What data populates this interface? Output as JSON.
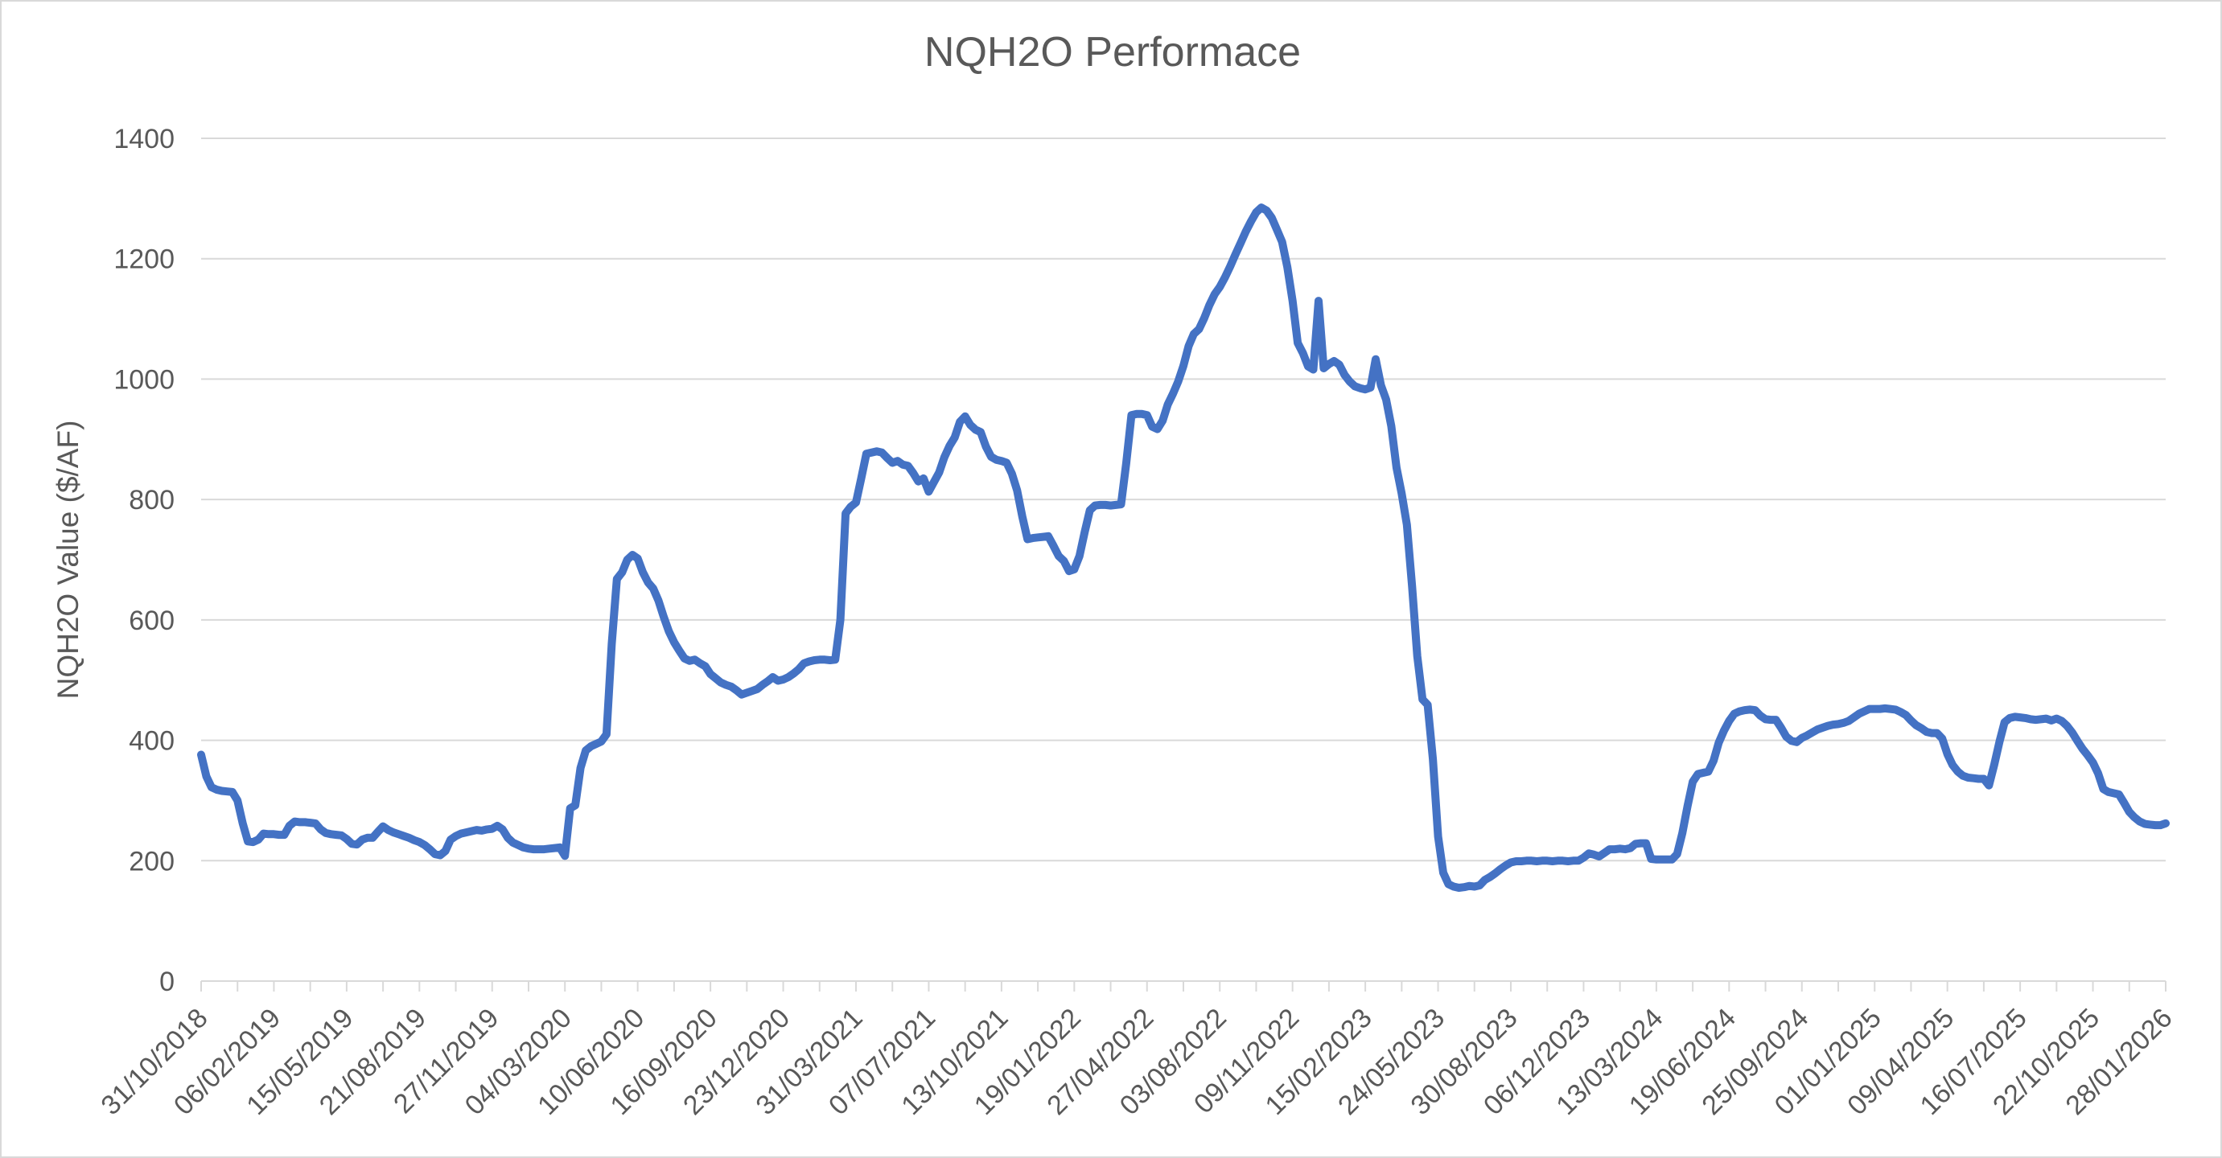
{
  "chart_data": {
    "type": "line",
    "title": "NQH2O Performace",
    "xlabel": "",
    "ylabel": "NQH2O Value ($/AF)",
    "ylim": [
      0,
      1400
    ],
    "ytick_step": 200,
    "yticks": [
      0,
      200,
      400,
      600,
      800,
      1000,
      1200,
      1400
    ],
    "grid": true,
    "legend_position": "none",
    "x_label_every": 14,
    "x_tick_every": 7,
    "x_labels": [
      "31/10/2018",
      "06/02/2019",
      "15/05/2019",
      "21/08/2019",
      "27/11/2019",
      "04/03/2020",
      "10/06/2020",
      "16/09/2020",
      "23/12/2020",
      "31/03/2021",
      "07/07/2021",
      "13/10/2021",
      "19/01/2022",
      "27/04/2022",
      "03/08/2022",
      "09/11/2022",
      "15/02/2023",
      "24/05/2023",
      "30/08/2023",
      "06/12/2023",
      "13/03/2024",
      "19/06/2024",
      "25/09/2024",
      "01/01/2025",
      "09/04/2025",
      "16/07/2025",
      "22/10/2025",
      "28/01/2026"
    ],
    "series": [
      {
        "name": "NQH2O Value",
        "color": "#4472C4",
        "values": [
          376,
          340,
          322,
          318,
          316,
          315,
          314,
          300,
          262,
          232,
          231,
          235,
          245,
          244,
          244,
          243,
          243,
          258,
          265,
          264,
          264,
          263,
          262,
          252,
          246,
          244,
          243,
          242,
          236,
          228,
          227,
          235,
          238,
          238,
          248,
          257,
          251,
          247,
          244,
          241,
          238,
          234,
          231,
          226,
          219,
          211,
          209,
          216,
          235,
          241,
          245,
          247,
          249,
          251,
          250,
          252,
          253,
          258,
          252,
          238,
          230,
          226,
          222,
          220,
          219,
          219,
          219,
          220,
          221,
          222,
          208,
          287,
          292,
          354,
          383,
          390,
          394,
          398,
          410,
          560,
          668,
          679,
          700,
          708,
          702,
          679,
          662,
          652,
          632,
          605,
          581,
          563,
          549,
          536,
          532,
          534,
          528,
          523,
          510,
          503,
          496,
          492,
          489,
          483,
          476,
          479,
          482,
          485,
          492,
          498,
          505,
          499,
          501,
          505,
          511,
          518,
          528,
          531,
          533,
          534,
          534,
          533,
          534,
          600,
          777,
          788,
          795,
          835,
          876,
          878,
          880,
          878,
          869,
          861,
          864,
          858,
          856,
          844,
          830,
          835,
          813,
          829,
          845,
          870,
          889,
          903,
          929,
          938,
          924,
          916,
          912,
          888,
          871,
          866,
          864,
          861,
          843,
          815,
          772,
          734,
          736,
          737,
          738,
          739,
          723,
          706,
          698,
          681,
          684,
          706,
          746,
          782,
          790,
          791,
          791,
          790,
          791,
          792,
          860,
          940,
          942,
          942,
          940,
          921,
          917,
          931,
          958,
          976,
          996,
          1022,
          1055,
          1075,
          1083,
          1101,
          1123,
          1141,
          1153,
          1169,
          1187,
          1207,
          1226,
          1245,
          1262,
          1277,
          1285,
          1280,
          1268,
          1248,
          1228,
          1186,
          1130,
          1060,
          1043,
          1021,
          1016,
          1130,
          1018,
          1025,
          1030,
          1024,
          1007,
          996,
          988,
          985,
          983,
          986,
          1033,
          990,
          966,
          922,
          853,
          810,
          758,
          655,
          540,
          468,
          459,
          369,
          240,
          180,
          161,
          157,
          155,
          156,
          158,
          157,
          159,
          168,
          173,
          179,
          186,
          192,
          197,
          199,
          199,
          200,
          200,
          199,
          200,
          200,
          199,
          200,
          200,
          199,
          200,
          200,
          205,
          212,
          210,
          207,
          213,
          219,
          219,
          220,
          219,
          221,
          228,
          229,
          229,
          203,
          202,
          202,
          202,
          202,
          211,
          246,
          291,
          331,
          344,
          346,
          348,
          366,
          396,
          416,
          432,
          444,
          448,
          450,
          451,
          450,
          441,
          435,
          434,
          434,
          421,
          406,
          399,
          397,
          404,
          408,
          413,
          418,
          421,
          424,
          426,
          427,
          429,
          432,
          438,
          444,
          448,
          452,
          452,
          452,
          453,
          452,
          451,
          447,
          442,
          433,
          425,
          420,
          414,
          412,
          412,
          403,
          377,
          359,
          348,
          341,
          338,
          337,
          336,
          336,
          325,
          359,
          397,
          430,
          437,
          439,
          438,
          437,
          435,
          434,
          435,
          436,
          433,
          436,
          432,
          424,
          413,
          399,
          386,
          375,
          363,
          345,
          319,
          314,
          312,
          310,
          296,
          281,
          272,
          265,
          261,
          260,
          259,
          259,
          262
        ]
      }
    ],
    "colors": {
      "line": "#4472C4",
      "gridline": "#D9D9D9",
      "axis": "#D9D9D9",
      "text": "#595959",
      "background": "#FFFFFF"
    }
  }
}
